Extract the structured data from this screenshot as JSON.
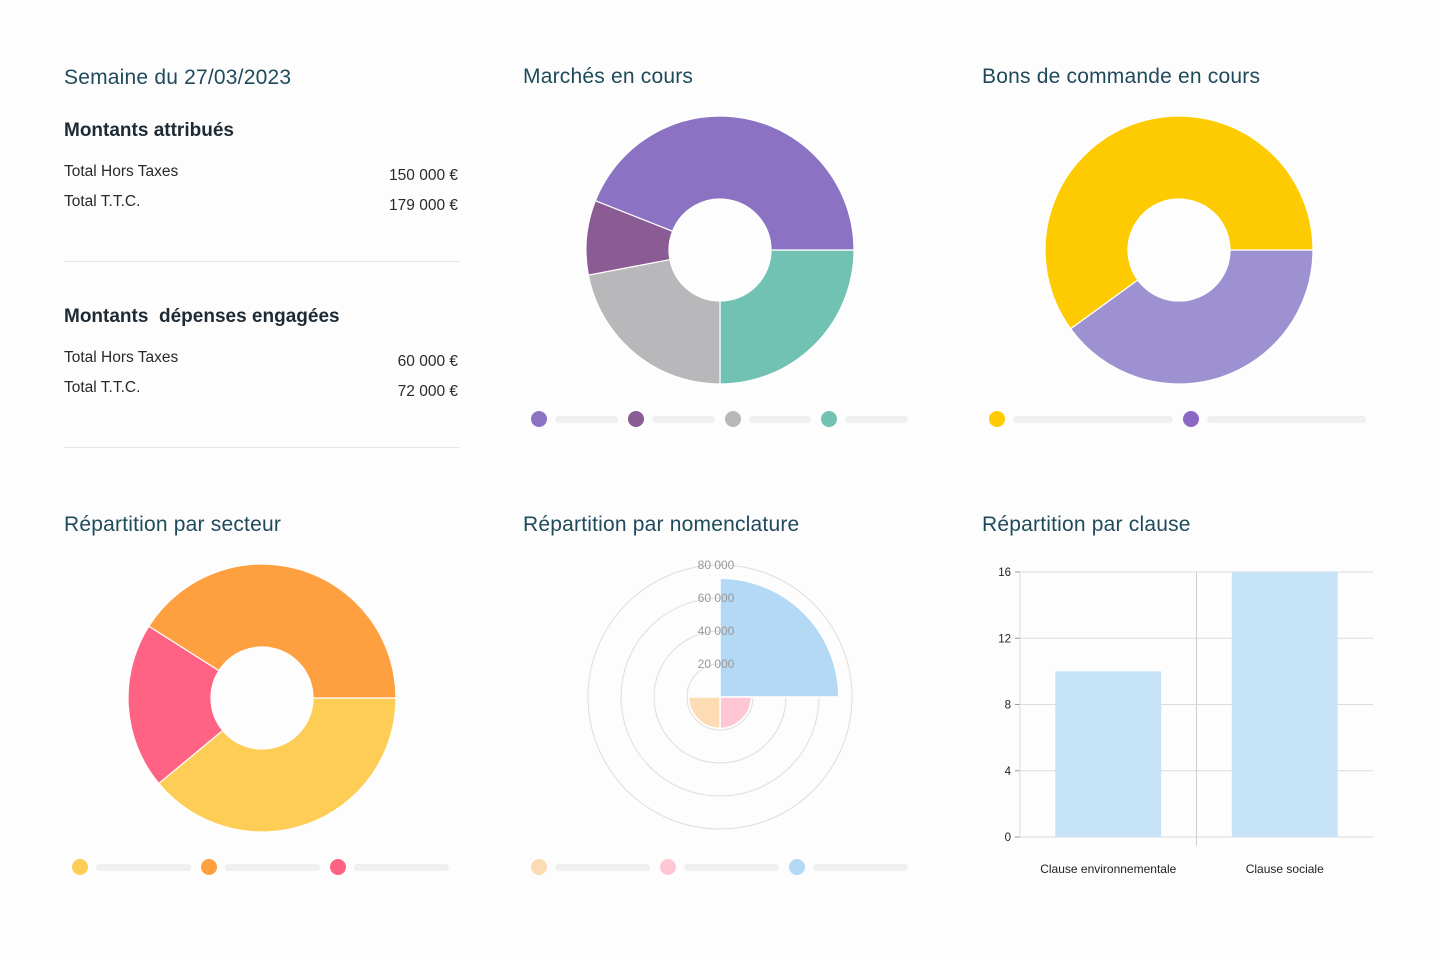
{
  "summary": {
    "title": "Semaine du 27/03/2023",
    "section1": {
      "title": "Montants attribués",
      "rows": [
        {
          "label": "Total Hors Taxes",
          "value": "150 000 €"
        },
        {
          "label": "Total T.T.C.",
          "value": "179 000 €"
        }
      ]
    },
    "section2": {
      "title": "Montants  dépenses engagées",
      "rows": [
        {
          "label": "Total Hors Taxes",
          "value": "60 000 €"
        },
        {
          "label": "Total T.T.C.",
          "value": "72 000 €"
        }
      ]
    }
  },
  "titles": {
    "marches": "Marchés en cours",
    "bons": "Bons de commande en cours",
    "secteur": "Répartition par secteur",
    "nomenclature": "Répartition par nomenclature",
    "clause": "Répartition par clause"
  },
  "chart_data": [
    {
      "id": "marches",
      "type": "pie",
      "donut": true,
      "start_angle_deg": 0,
      "slices": [
        {
          "value": 25,
          "color": "#72c2b3"
        },
        {
          "value": 22,
          "color": "#b8b7b9"
        },
        {
          "value": 9,
          "color": "#8b5b93"
        },
        {
          "value": 44,
          "color": "#8b72c3"
        }
      ],
      "legend": [
        {
          "color": "#8b72c3"
        },
        {
          "color": "#8b5b93"
        },
        {
          "color": "#b8b7b9"
        },
        {
          "color": "#72c2b3"
        }
      ]
    },
    {
      "id": "bons",
      "type": "pie",
      "donut": true,
      "start_angle_deg": 0,
      "slices": [
        {
          "value": 40,
          "color": "#9d91d1"
        },
        {
          "value": 60,
          "color": "#fecb02"
        }
      ],
      "legend": [
        {
          "color": "#fecb02"
        },
        {
          "color": "#8b68c4"
        }
      ]
    },
    {
      "id": "secteur",
      "type": "pie",
      "donut": true,
      "start_angle_deg": 0,
      "slices": [
        {
          "value": 39,
          "color": "#fecd56"
        },
        {
          "value": 20,
          "color": "#ff6384"
        },
        {
          "value": 41,
          "color": "#fe9f40"
        }
      ],
      "legend": [
        {
          "color": "#fecd56"
        },
        {
          "color": "#fe9f40"
        },
        {
          "color": "#ff6384"
        }
      ]
    },
    {
      "id": "nomenclature",
      "type": "polar-area",
      "max": 80000,
      "ticks": [
        "20 000",
        "40 000",
        "60 000",
        "80 000"
      ],
      "tick_values": [
        20000,
        40000,
        60000,
        80000
      ],
      "sectors": [
        {
          "value": 72000,
          "color": "#b4d9f5"
        },
        {
          "value": 19000,
          "color": "#ffc6d3"
        },
        {
          "value": 19000,
          "color": "#fddcb3"
        },
        {
          "value": 0,
          "color": "#ffffff"
        }
      ],
      "legend": [
        {
          "color": "#fddcb3"
        },
        {
          "color": "#ffc6d3"
        },
        {
          "color": "#b4d9f5"
        }
      ]
    },
    {
      "id": "clause",
      "type": "bar",
      "categories": [
        "Clause environnementale",
        "Clause sociale"
      ],
      "values": [
        10,
        16
      ],
      "ylim": [
        0,
        16
      ],
      "yticks": [
        "0",
        "4",
        "8",
        "12",
        "16"
      ],
      "bar_color": "#c5e2f7"
    }
  ]
}
